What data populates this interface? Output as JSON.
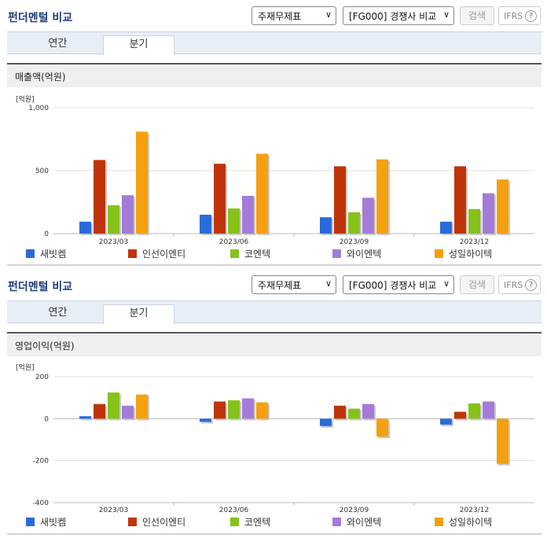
{
  "colors": {
    "sebitchem": "#2B6BD9",
    "insun": "#C0340A",
    "coentec": "#86C21A",
    "wisolentec": "#A47BD8",
    "sungil": "#F5A00E"
  },
  "panels": [
    {
      "title": "펀더멘털 비교",
      "select1": "주재무제표",
      "select2": "[FG000] 경쟁사 비교",
      "search_label": "검색",
      "ifrs_label": "IFRS",
      "help_icon": "?",
      "tabs": [
        "연간",
        "분기"
      ],
      "subhead": "매출액(억원)",
      "unit": "[억원]"
    },
    {
      "title": "펀더멘털 비교",
      "select1": "주재무제표",
      "select2": "[FG000] 경쟁사 비교",
      "search_label": "검색",
      "ifrs_label": "IFRS",
      "help_icon": "?",
      "tabs": [
        "연간",
        "분기"
      ],
      "subhead": "영업이익(억원)",
      "unit": "[억원]"
    }
  ],
  "chart_data": [
    {
      "type": "bar",
      "title": "매출액(억원)",
      "ylabel": "[억원]",
      "ylim": [
        0,
        1000
      ],
      "yticks": [
        0,
        500,
        1000
      ],
      "ytick_labels": [
        "0",
        "500",
        "1,000"
      ],
      "categories": [
        "2023/03",
        "2023/06",
        "2023/09",
        "2023/12"
      ],
      "series": [
        {
          "name": "새빗켐",
          "values": [
            95,
            150,
            130,
            95
          ]
        },
        {
          "name": "인선이엔티",
          "values": [
            585,
            555,
            535,
            535
          ]
        },
        {
          "name": "코엔텍",
          "values": [
            225,
            200,
            170,
            195
          ]
        },
        {
          "name": "와이엔텍",
          "values": [
            305,
            300,
            285,
            320
          ]
        },
        {
          "name": "성일하이텍",
          "values": [
            810,
            635,
            590,
            430
          ]
        }
      ],
      "legend_position": "bottom"
    },
    {
      "type": "bar",
      "title": "영업이익(억원)",
      "ylabel": "[억원]",
      "ylim": [
        -400,
        200
      ],
      "yticks": [
        -400,
        -200,
        0,
        200
      ],
      "ytick_labels": [
        "-400",
        "-200",
        "0",
        "200"
      ],
      "categories": [
        "2023/03",
        "2023/06",
        "2023/09",
        "2023/12"
      ],
      "series": [
        {
          "name": "새빗켐",
          "values": [
            12,
            -15,
            -35,
            -28
          ]
        },
        {
          "name": "인선이엔티",
          "values": [
            70,
            82,
            62,
            33
          ]
        },
        {
          "name": "코엔텍",
          "values": [
            125,
            88,
            48,
            73
          ]
        },
        {
          "name": "와이엔텍",
          "values": [
            62,
            97,
            70,
            82
          ]
        },
        {
          "name": "성일하이텍",
          "values": [
            115,
            78,
            -85,
            -215
          ]
        }
      ],
      "legend_position": "bottom"
    }
  ]
}
